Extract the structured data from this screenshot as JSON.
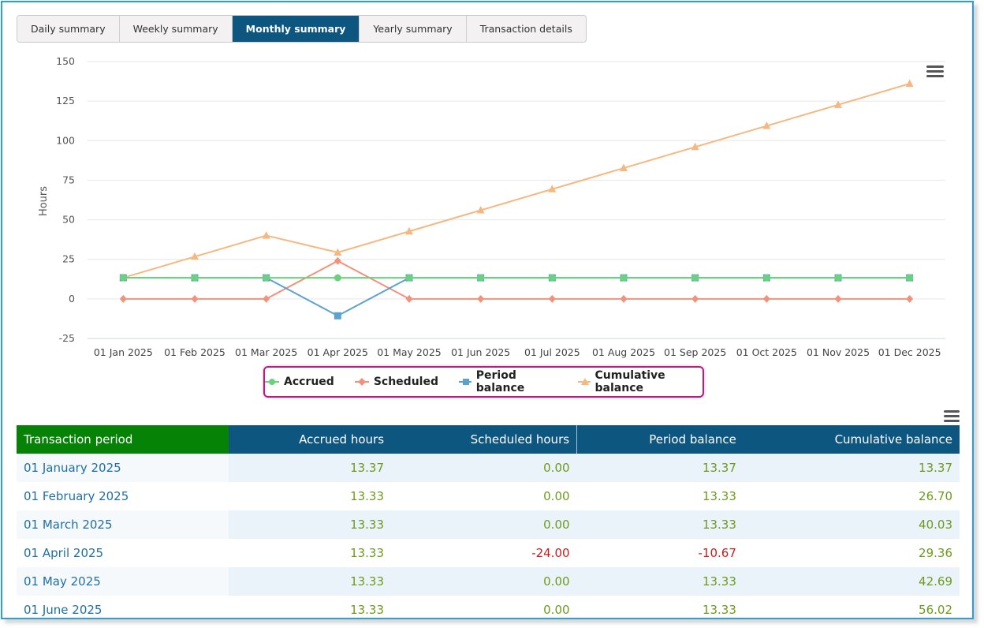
{
  "tabs": [
    {
      "label": "Daily summary",
      "active": false
    },
    {
      "label": "Weekly summary",
      "active": false
    },
    {
      "label": "Monthly summary",
      "active": true
    },
    {
      "label": "Yearly summary",
      "active": false
    },
    {
      "label": "Transaction details",
      "active": false
    }
  ],
  "chart_data": {
    "type": "line",
    "ylabel": "Hours",
    "xlabel": "",
    "ylim": [
      -25,
      150
    ],
    "yticks": [
      -25,
      0,
      25,
      50,
      75,
      100,
      125,
      150
    ],
    "grid": true,
    "legend_position": "bottom-center",
    "categories": [
      "01 Jan 2025",
      "01 Feb 2025",
      "01 Mar 2025",
      "01 Apr 2025",
      "01 May 2025",
      "01 Jun 2025",
      "01 Jul 2025",
      "01 Aug 2025",
      "01 Sep 2025",
      "01 Oct 2025",
      "01 Nov 2025",
      "01 Dec 2025"
    ],
    "series": [
      {
        "name": "Accrued",
        "color": "#6cd17c",
        "marker": "circle",
        "values": [
          13.37,
          13.33,
          13.33,
          13.33,
          13.33,
          13.33,
          13.33,
          13.33,
          13.33,
          13.33,
          13.33,
          13.33
        ]
      },
      {
        "name": "Scheduled",
        "color": "#f2927d",
        "marker": "diamond",
        "values": [
          0,
          0,
          0,
          24,
          0,
          0,
          0,
          0,
          0,
          0,
          0,
          0
        ]
      },
      {
        "name": "Period balance",
        "color": "#5ba3cf",
        "marker": "square",
        "values": [
          13.37,
          13.33,
          13.33,
          -10.67,
          13.33,
          13.33,
          13.33,
          13.33,
          13.33,
          13.33,
          13.33,
          13.33
        ]
      },
      {
        "name": "Cumulative balance",
        "color": "#f5b880",
        "marker": "triangle",
        "values": [
          13.37,
          26.7,
          40.03,
          29.36,
          42.69,
          56.02,
          69.35,
          82.68,
          96.01,
          109.34,
          122.67,
          136.0
        ]
      }
    ]
  },
  "legend": {
    "items": [
      "Accrued",
      "Scheduled",
      "Period balance",
      "Cumulative balance"
    ]
  },
  "table": {
    "headers": {
      "period": "Transaction period",
      "accrued": "Accrued hours",
      "scheduled": "Scheduled hours",
      "period_balance": "Period balance",
      "cumulative": "Cumulative balance"
    },
    "rows": [
      {
        "period": "01 January 2025",
        "accrued": "13.37",
        "scheduled": "0.00",
        "period_balance": "13.37",
        "cumulative": "13.37"
      },
      {
        "period": "01 February 2025",
        "accrued": "13.33",
        "scheduled": "0.00",
        "period_balance": "13.33",
        "cumulative": "26.70"
      },
      {
        "period": "01 March 2025",
        "accrued": "13.33",
        "scheduled": "0.00",
        "period_balance": "13.33",
        "cumulative": "40.03"
      },
      {
        "period": "01 April 2025",
        "accrued": "13.33",
        "scheduled": "-24.00",
        "period_balance": "-10.67",
        "cumulative": "29.36"
      },
      {
        "period": "01 May 2025",
        "accrued": "13.33",
        "scheduled": "0.00",
        "period_balance": "13.33",
        "cumulative": "42.69"
      },
      {
        "period": "01 June 2025",
        "accrued": "13.33",
        "scheduled": "0.00",
        "period_balance": "13.33",
        "cumulative": "56.02"
      }
    ]
  },
  "icons": {
    "chart_menu": "hamburger-menu-icon",
    "table_menu": "hamburger-menu-icon"
  }
}
